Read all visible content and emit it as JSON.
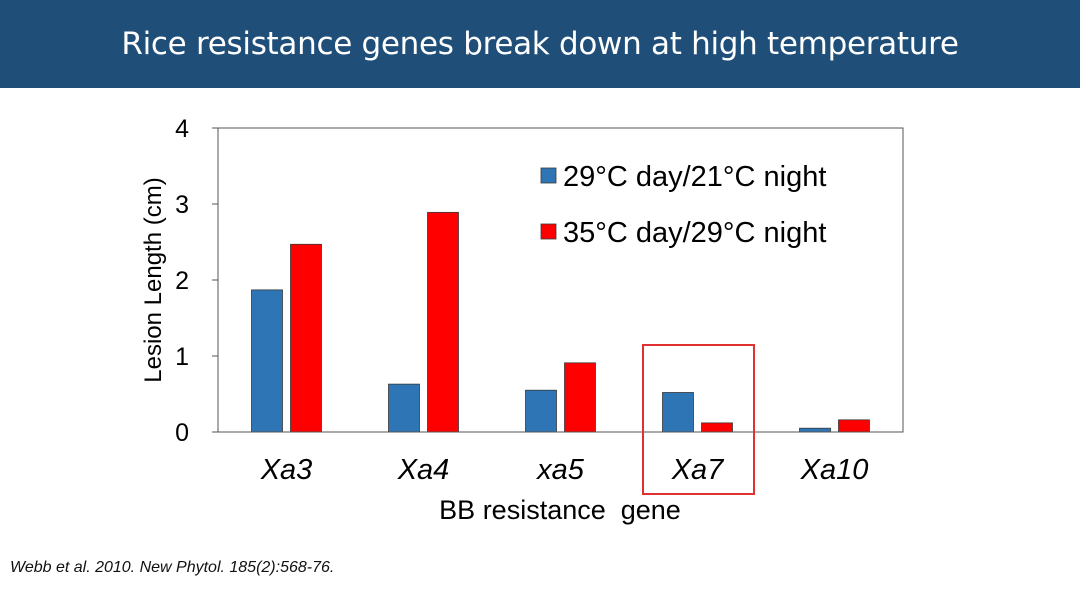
{
  "slide": {
    "title": "Rice resistance genes break down at high temperature",
    "citation": "Webb et al. 2010. New Phytol. 185(2):568-76."
  },
  "chart_data": {
    "type": "bar",
    "categories": [
      "Xa3",
      "Xa4",
      "xa5",
      "Xa7",
      "Xa10"
    ],
    "series": [
      {
        "name": "29°C day/21°C night",
        "color": "#2e75b6",
        "values": [
          1.87,
          0.63,
          0.55,
          0.52,
          0.05
        ]
      },
      {
        "name": "35°C day/29°C night",
        "color": "#ff0000",
        "values": [
          2.47,
          2.89,
          0.91,
          0.12,
          0.16
        ]
      }
    ],
    "xlabel": "BB resistance  gene",
    "ylabel": "Lesion Length (cm)",
    "ylim": [
      0,
      4
    ],
    "yticks": [
      0,
      1,
      2,
      3,
      4
    ],
    "grid": false,
    "legend_position": "top-right",
    "highlighted_category": "Xa7",
    "highlight_color": "#e03030"
  }
}
